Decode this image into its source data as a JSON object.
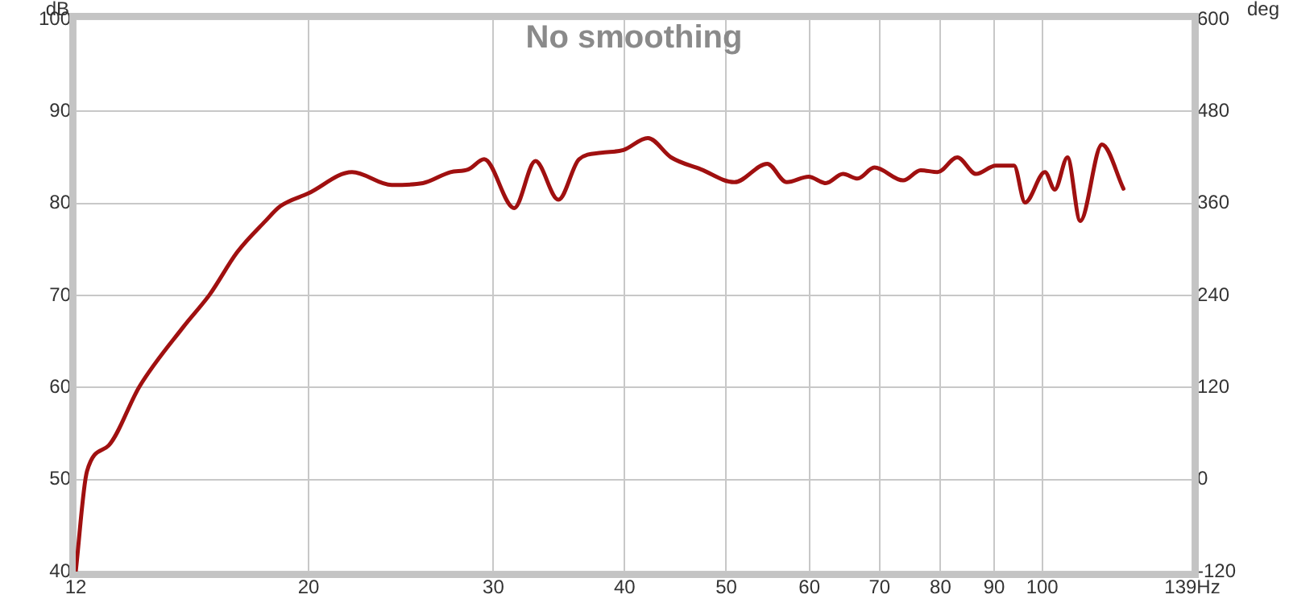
{
  "chart_data": {
    "type": "line",
    "title": "No smoothing",
    "ylabel": "dB",
    "y2label": "deg",
    "log": "x",
    "grid": true,
    "legend": false,
    "marker": "none",
    "line_style": "solid",
    "xlim": [
      12,
      139
    ],
    "xticks": [
      12,
      20,
      30,
      40,
      50,
      60,
      70,
      80,
      90,
      100,
      {
        "value": 139,
        "label": "139Hz"
      }
    ],
    "ylim": [
      40,
      100
    ],
    "yticks": [
      40,
      50,
      60,
      70,
      80,
      90,
      100
    ],
    "y2lim": [
      -120,
      600
    ],
    "y2ticks": [
      -120,
      0,
      120,
      240,
      360,
      480,
      600
    ],
    "series": [
      {
        "color": "#a01010",
        "x": [
          12,
          12.3,
          12.9,
          13.8,
          15.2,
          16.1,
          17.1,
          18.2,
          18.8,
          20,
          22,
          24,
          25.7,
          27.3,
          28.4,
          29.4,
          31.4,
          32.9,
          34.6,
          36.2,
          38,
          39.9,
          42.1,
          44.3,
          47.3,
          50.9,
          54.7,
          57.1,
          59.9,
          62.2,
          64.6,
          66.7,
          69.2,
          73.7,
          76.6,
          79.5,
          83,
          86.5,
          90.3,
          94,
          96.3,
          100.6,
          102.8,
          105.7,
          108.7,
          114,
          119.5
        ],
        "values": [
          40,
          50.9,
          53.7,
          60.1,
          66.6,
          70.1,
          74.7,
          78.1,
          79.7,
          81.1,
          83.4,
          82,
          82.2,
          83.4,
          83.7,
          84.8,
          79.5,
          84.6,
          80.4,
          84.8,
          85.5,
          85.8,
          87.1,
          85,
          83.7,
          82.3,
          84.3,
          82.3,
          82.9,
          82.2,
          83.2,
          82.7,
          83.9,
          82.5,
          83.6,
          83.4,
          85,
          83.2,
          84.1,
          84.1,
          80.1,
          83.4,
          81.5,
          85,
          78.1,
          86.4,
          81.6
        ]
      }
    ]
  }
}
